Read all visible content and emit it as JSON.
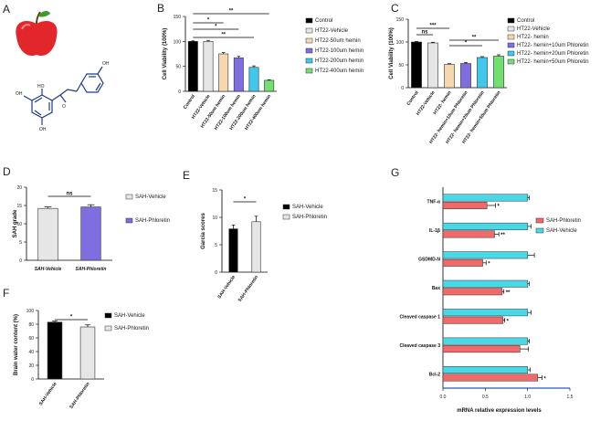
{
  "chart_data": [
    {
      "panel": "A",
      "type": "illustration",
      "content": [
        "apple",
        "phloretin structure"
      ],
      "structure_labels": [
        "HO",
        "OH",
        "OH",
        "OH",
        "O"
      ]
    },
    {
      "panel": "B",
      "type": "bar",
      "ylabel": "Cell Viability (100%)",
      "ylim": [
        0,
        150
      ],
      "yticks": [
        0,
        50,
        100,
        150
      ],
      "categories": [
        "Control",
        "HT22-Vehicle",
        "HT22-50um hemin",
        "HT22-100um hemin",
        "HT22-200um hemin",
        "HT22-400um hemin"
      ],
      "values": [
        100,
        100,
        75,
        67,
        48,
        22
      ],
      "errors": [
        1,
        2,
        2.5,
        3,
        3,
        1
      ],
      "colors": [
        "#000000",
        "#e6e6e6",
        "#f7d7b0",
        "#7e6ee0",
        "#3fc8eb",
        "#72e070"
      ],
      "legend": [
        "Control",
        "HT22-Vehicle",
        "HT22-50um hemin",
        "HT22-100um hemin",
        "HT22-200um hemin",
        "HT22-400um hemin"
      ],
      "significance": [
        {
          "from": 0,
          "to": 5,
          "label": "**"
        },
        {
          "from": 0,
          "to": 2,
          "label": "*"
        },
        {
          "from": 0,
          "to": 3,
          "label": "*"
        },
        {
          "from": 0,
          "to": 4,
          "label": "**"
        }
      ]
    },
    {
      "panel": "C",
      "type": "bar",
      "ylabel": "Cell Viability (100%)",
      "ylim": [
        0,
        150
      ],
      "yticks": [
        0,
        50,
        100,
        150
      ],
      "categories": [
        "Control",
        "HT22-Vehicle",
        "HT22- hemin",
        "HT22- hemin+10um Phloretin",
        "HT22- hemin+20um Phloretin",
        "HT22- hemin+50um Phloretin"
      ],
      "values": [
        100,
        98,
        51,
        53,
        66,
        69
      ],
      "errors": [
        1,
        1.5,
        1.5,
        2,
        2,
        3
      ],
      "colors": [
        "#000000",
        "#e6e6e6",
        "#f7d7b0",
        "#7e6ee0",
        "#3fc8eb",
        "#72e070"
      ],
      "legend": [
        "Control",
        "HT22-Vehicle",
        "HT22- hemin",
        "HT22- hemin+10um Phloretin",
        "HT22- hemin+20um Phloretin",
        "HT22- hemin+50um Phloretin"
      ],
      "significance": [
        {
          "from": 0,
          "to": 1,
          "label": "ns"
        },
        {
          "from": 0,
          "to": 2,
          "label": "***"
        },
        {
          "from": 2,
          "to": 5,
          "label": "**"
        },
        {
          "from": 2,
          "to": 4,
          "label": "*"
        }
      ]
    },
    {
      "panel": "D",
      "type": "bar",
      "ylabel": "SAH grade",
      "ylim": [
        0,
        20
      ],
      "yticks": [
        0,
        5,
        10,
        15,
        20
      ],
      "categories": [
        "SAH-Vehicle",
        "SAH-Phloretin"
      ],
      "values": [
        14.2,
        14.6
      ],
      "errors": [
        0.4,
        0.6
      ],
      "colors": [
        "#e6e6e6",
        "#7e6ee0"
      ],
      "legend": [
        "SAH-Vehicle",
        "SAH-Phloretin"
      ],
      "significance": [
        {
          "from": 0,
          "to": 1,
          "label": "ns"
        }
      ]
    },
    {
      "panel": "E",
      "type": "bar",
      "ylabel": "Garcia scores",
      "ylim": [
        0,
        15
      ],
      "yticks": [
        0,
        5,
        10,
        15
      ],
      "categories": [
        "SAH-Vehicle",
        "SAH-Phloretin"
      ],
      "values": [
        7.9,
        9.2
      ],
      "errors": [
        0.7,
        1.0
      ],
      "colors": [
        "#000000",
        "#e6e6e6"
      ],
      "legend": [
        "SAH-Vehicle",
        "SAH-Phloretin"
      ],
      "significance": [
        {
          "from": 0,
          "to": 1,
          "label": "*"
        }
      ]
    },
    {
      "panel": "F",
      "type": "bar",
      "ylabel": "Brain water content (%)",
      "ylim": [
        0,
        100
      ],
      "yticks": [
        0,
        20,
        40,
        60,
        80,
        100
      ],
      "categories": [
        "SAH-Vehicle",
        "SAH-Phloretin"
      ],
      "values": [
        83,
        76
      ],
      "errors": [
        1.5,
        3
      ],
      "colors": [
        "#000000",
        "#e6e6e6"
      ],
      "legend": [
        "SAH-Vehicle",
        "SAH-Phloretin"
      ],
      "significance": [
        {
          "from": 0,
          "to": 1,
          "label": "*"
        }
      ]
    },
    {
      "panel": "G",
      "type": "bar",
      "orientation": "horizontal",
      "xlabel": "mRNA relative expression levels",
      "xlim": [
        0,
        1.5
      ],
      "xticks": [
        0.0,
        0.5,
        1.0,
        1.5
      ],
      "categories": [
        "TNF-α",
        "IL-1β",
        "GSDMD-N",
        "Bax",
        "Cleaved caspase 1",
        "Cleaved caspase 3",
        "Bcl-2"
      ],
      "series": [
        {
          "name": "SAH-Vehicle",
          "color": "#48d8e6",
          "values": [
            1.0,
            1.0,
            1.0,
            1.0,
            1.0,
            1.0,
            1.0
          ],
          "errors": [
            0.02,
            0.04,
            0.08,
            0.02,
            0.04,
            0.02,
            0.03
          ]
        },
        {
          "name": "SAH-Phloretin",
          "color": "#f06a6a",
          "values": [
            0.52,
            0.61,
            0.47,
            0.7,
            0.71,
            0.91,
            1.12
          ],
          "errors": [
            0.1,
            0.05,
            0.04,
            0.02,
            0.02,
            0.1,
            0.05
          ]
        }
      ],
      "significance": [
        "*",
        "**",
        "*",
        "**",
        "*",
        "",
        "*"
      ],
      "legend": [
        "SAH-Phloretin",
        "SAH-Vehicle"
      ]
    }
  ]
}
